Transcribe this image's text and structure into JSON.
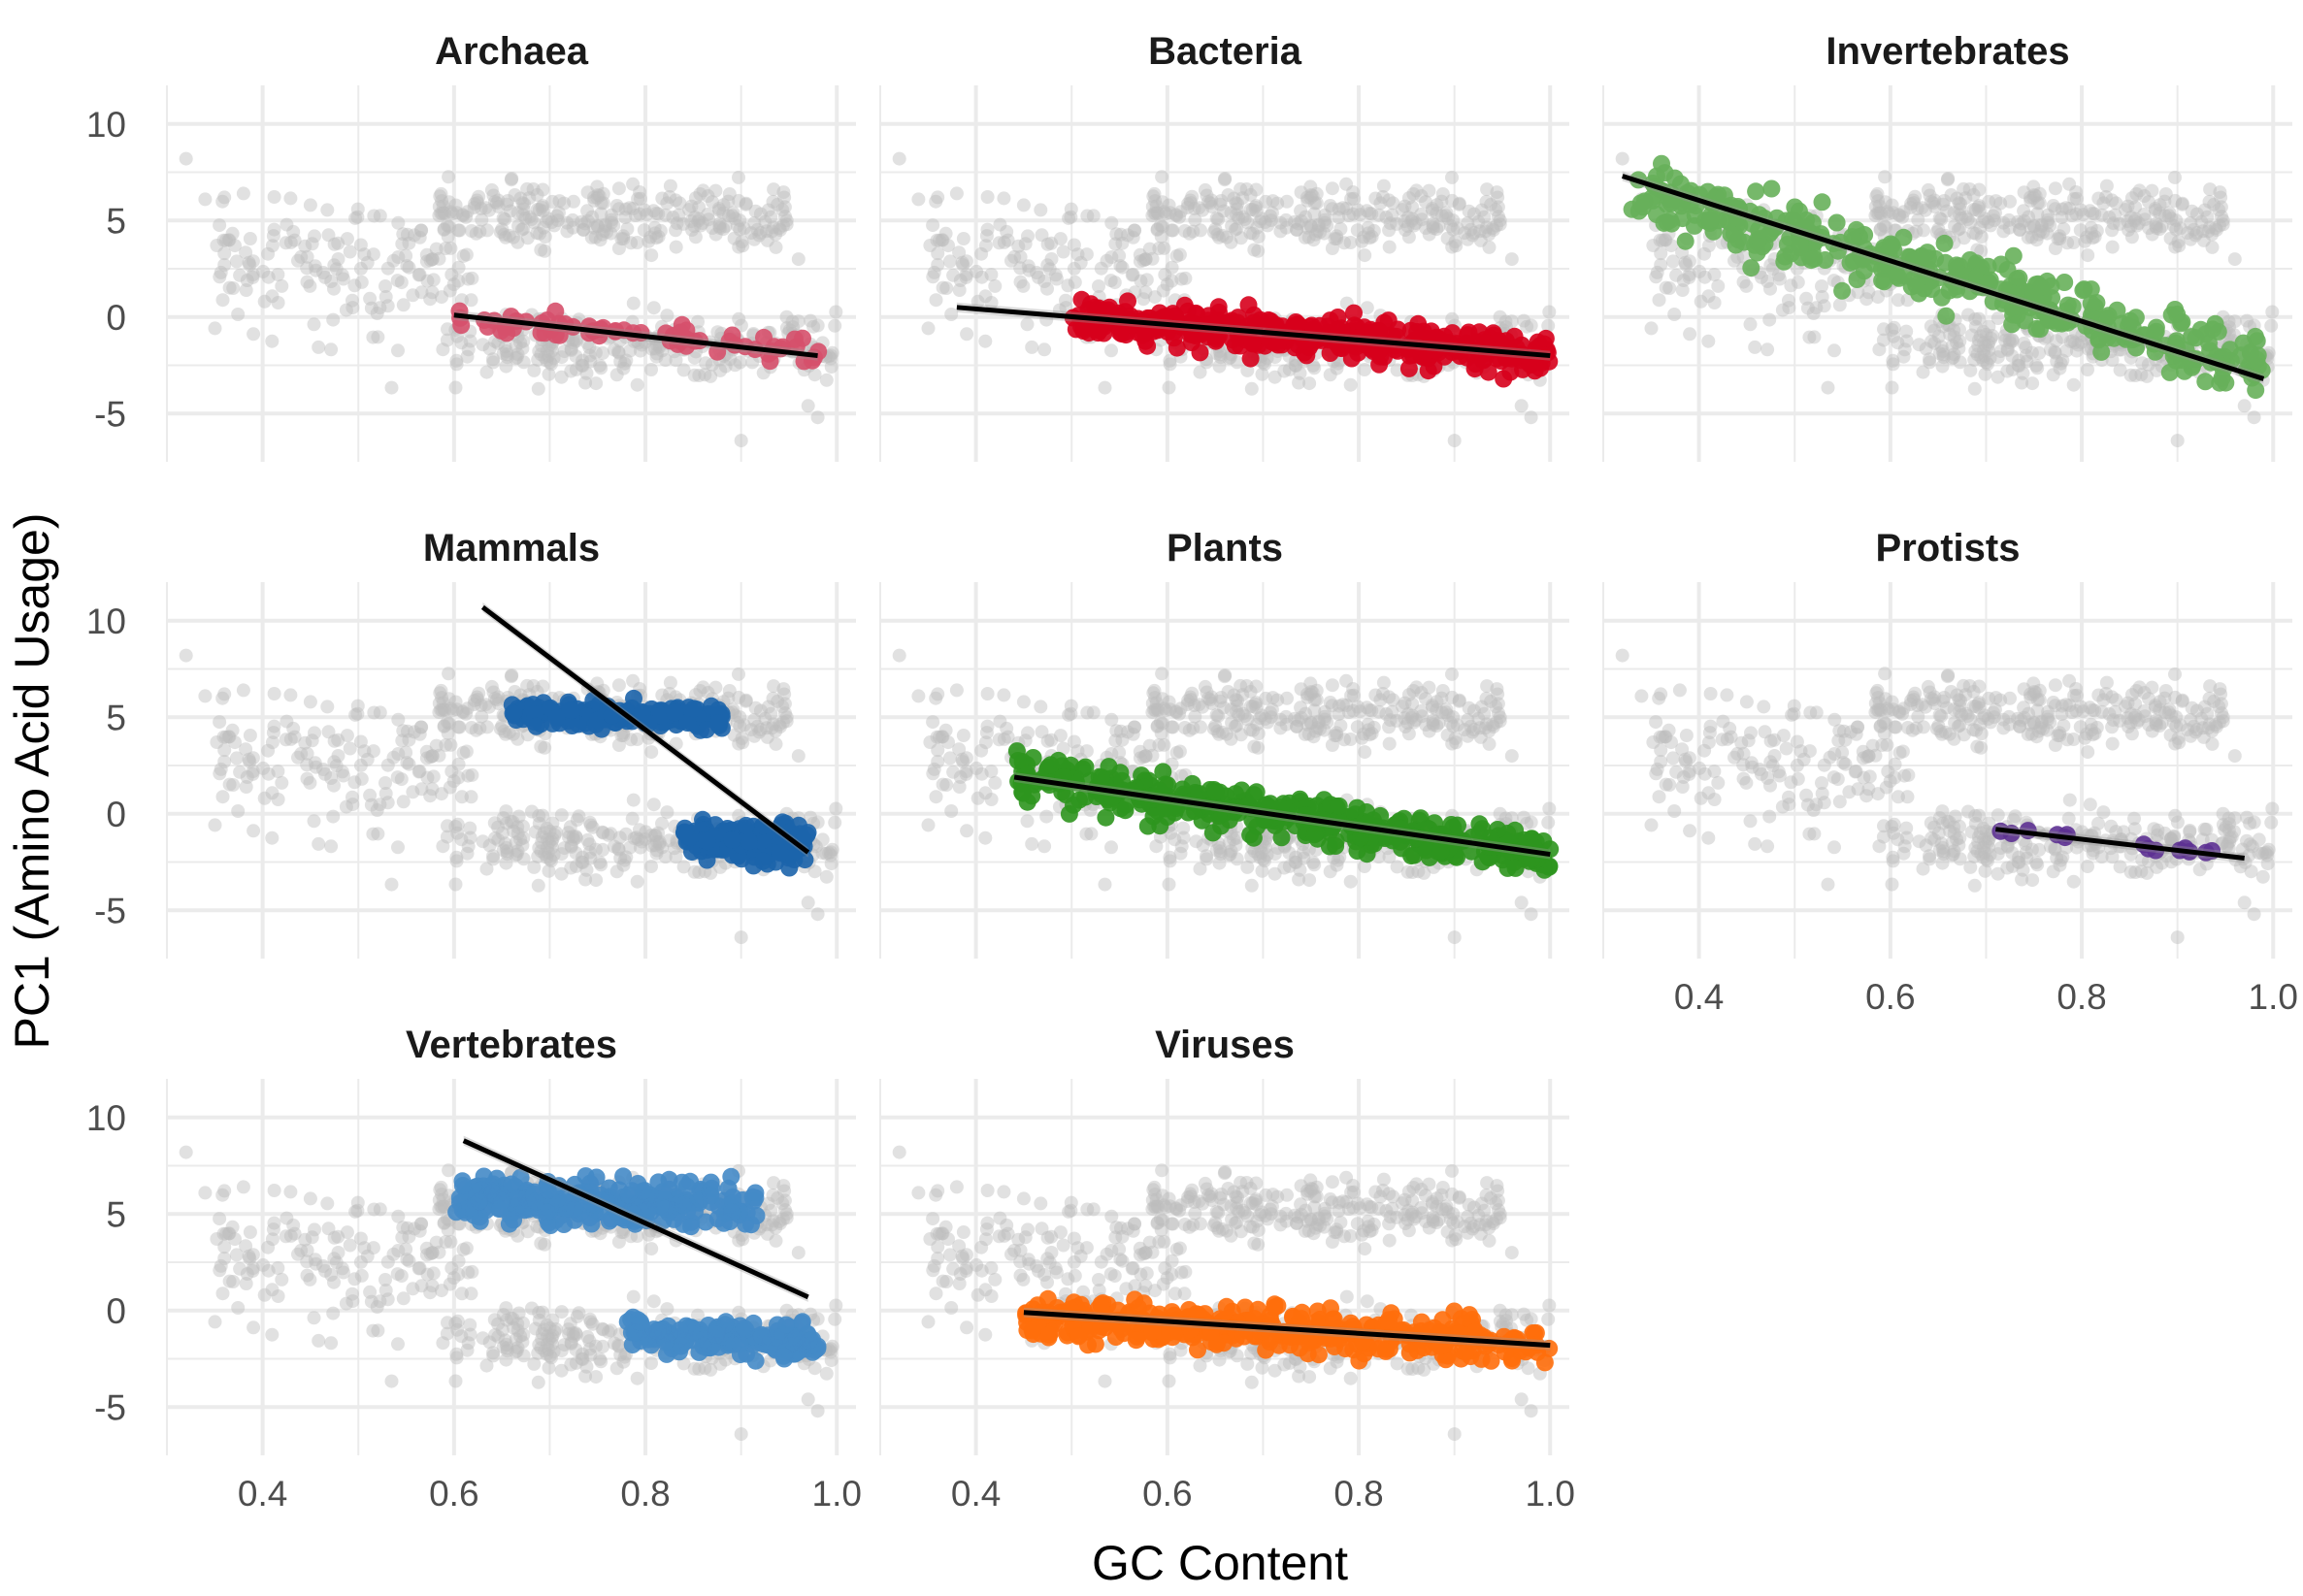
{
  "chart_data": {
    "type": "scatter",
    "layout": "facet_wrap",
    "xlabel": "GC Content",
    "ylabel": "PC1 (Amino Acid Usage)",
    "xlim": [
      0.3,
      1.02
    ],
    "ylim": [
      -7.5,
      12
    ],
    "x_ticks": [
      0.4,
      0.6,
      0.8,
      1.0
    ],
    "x_tick_labels": [
      "0.4",
      "0.6",
      "0.8",
      "1.0"
    ],
    "y_ticks": [
      10,
      5,
      0,
      -5
    ],
    "y_tick_labels": [
      "10",
      "5",
      "0",
      "-5"
    ],
    "grid": true,
    "legend": "none",
    "background": {
      "description": "all genomes shown in grey in every panel",
      "color": "#bdbdbd",
      "clusters": [
        {
          "x_range": [
            0.58,
            0.95
          ],
          "y_center": 5.2,
          "spread": 1.3
        },
        {
          "x_range": [
            0.6,
            1.0
          ],
          "y_center": -1.5,
          "spread": 1.2
        },
        {
          "x_range": [
            0.35,
            0.62
          ],
          "y_center": 2.5,
          "spread": 2.5
        }
      ]
    },
    "panels": [
      {
        "name": "Archaea",
        "color": "#d6506b",
        "clusters": [
          {
            "x_range": [
              0.6,
              0.99
            ],
            "y_at_xmin": 0.1,
            "y_at_xmax": -2.0,
            "spread": 0.6,
            "n": 70
          }
        ],
        "fit": {
          "x1": 0.6,
          "y1": 0.1,
          "x2": 0.98,
          "y2": -2.0
        }
      },
      {
        "name": "Bacteria",
        "color": "#d7001c",
        "clusters": [
          {
            "x_range": [
              0.5,
              1.0
            ],
            "y_at_xmin": 0.0,
            "y_at_xmax": -2.0,
            "spread": 0.9,
            "n": 420
          }
        ],
        "fit": {
          "x1": 0.38,
          "y1": 0.5,
          "x2": 1.0,
          "y2": -2.0
        }
      },
      {
        "name": "Invertebrates",
        "color": "#67b05a",
        "clusters": [
          {
            "x_range": [
              0.33,
              0.99
            ],
            "y_at_xmin": 6.5,
            "y_at_xmax": -2.5,
            "spread": 1.4,
            "n": 380
          }
        ],
        "fit": {
          "x1": 0.32,
          "y1": 7.3,
          "x2": 0.99,
          "y2": -3.2
        }
      },
      {
        "name": "Mammals",
        "color": "#1c64ab",
        "clusters": [
          {
            "x_range": [
              0.66,
              0.88
            ],
            "y_at_xmin": 5.2,
            "y_at_xmax": 5.0,
            "spread": 0.6,
            "n": 160
          },
          {
            "x_range": [
              0.84,
              0.97
            ],
            "y_at_xmin": -1.2,
            "y_at_xmax": -1.6,
            "spread": 0.9,
            "n": 160
          }
        ],
        "fit": {
          "x1": 0.63,
          "y1": 10.7,
          "x2": 0.97,
          "y2": -2.0
        }
      },
      {
        "name": "Plants",
        "color": "#2e951e",
        "clusters": [
          {
            "x_range": [
              0.44,
              1.0
            ],
            "y_at_xmin": 2.0,
            "y_at_xmax": -2.2,
            "spread": 1.0,
            "n": 420
          }
        ],
        "fit": {
          "x1": 0.44,
          "y1": 1.9,
          "x2": 1.0,
          "y2": -2.1
        }
      },
      {
        "name": "Protists",
        "color": "#5d3192",
        "clusters": [
          {
            "x_range": [
              0.71,
              0.97
            ],
            "y_at_xmin": -0.9,
            "y_at_xmax": -2.3,
            "spread": 0.3,
            "n": 14
          }
        ],
        "fit": {
          "x1": 0.71,
          "y1": -0.8,
          "x2": 0.97,
          "y2": -2.3
        }
      },
      {
        "name": "Vertebrates",
        "color": "#4489c6",
        "clusters": [
          {
            "x_range": [
              0.6,
              0.92
            ],
            "y_at_xmin": 5.8,
            "y_at_xmax": 5.5,
            "spread": 1.0,
            "n": 260
          },
          {
            "x_range": [
              0.78,
              0.98
            ],
            "y_at_xmin": -1.2,
            "y_at_xmax": -1.8,
            "spread": 0.8,
            "n": 180
          }
        ],
        "fit": {
          "x1": 0.61,
          "y1": 8.8,
          "x2": 0.97,
          "y2": 0.7
        }
      },
      {
        "name": "Viruses",
        "color": "#ff6e0b",
        "clusters": [
          {
            "x_range": [
              0.45,
              1.0
            ],
            "y_at_xmin": -0.4,
            "y_at_xmax": -1.6,
            "spread": 1.0,
            "n": 380
          }
        ],
        "fit": {
          "x1": 0.45,
          "y1": -0.1,
          "x2": 1.0,
          "y2": -1.8
        }
      }
    ]
  }
}
